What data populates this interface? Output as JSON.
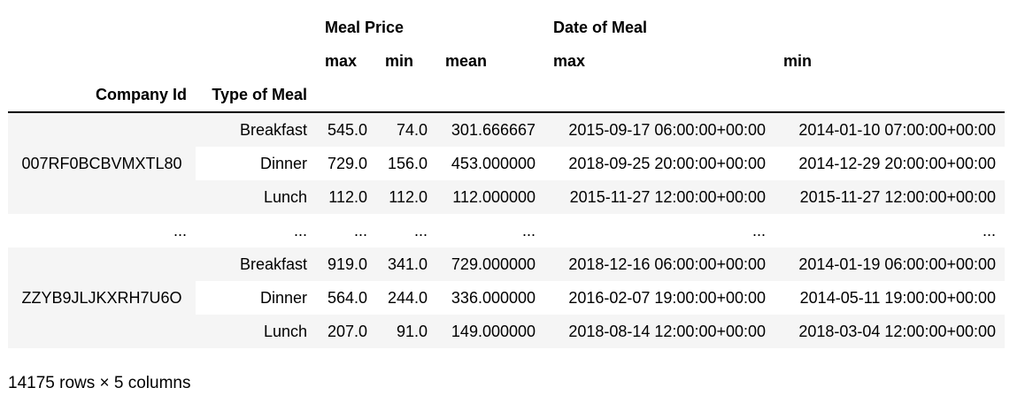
{
  "header": {
    "groups": {
      "meal_price": "Meal Price",
      "date_of_meal": "Date of Meal"
    },
    "sub": {
      "price_max": "max",
      "price_min": "min",
      "price_mean": "mean",
      "date_max": "max",
      "date_min": "min"
    },
    "index": {
      "company_id": "Company Id",
      "type_of_meal": "Type of Meal"
    }
  },
  "companies": [
    {
      "id": "007RF0BCBVMXTL80",
      "rows": [
        {
          "type": "Breakfast",
          "price_max": "545.0",
          "price_min": "74.0",
          "price_mean": "301.666667",
          "date_max": "2015-09-17 06:00:00+00:00",
          "date_min": "2014-01-10 07:00:00+00:00"
        },
        {
          "type": "Dinner",
          "price_max": "729.0",
          "price_min": "156.0",
          "price_mean": "453.000000",
          "date_max": "2018-09-25 20:00:00+00:00",
          "date_min": "2014-12-29 20:00:00+00:00"
        },
        {
          "type": "Lunch",
          "price_max": "112.0",
          "price_min": "112.0",
          "price_mean": "112.000000",
          "date_max": "2015-11-27 12:00:00+00:00",
          "date_min": "2015-11-27 12:00:00+00:00"
        }
      ]
    },
    {
      "id": "ZZYB9JLJKXRH7U6O",
      "rows": [
        {
          "type": "Breakfast",
          "price_max": "919.0",
          "price_min": "341.0",
          "price_mean": "729.000000",
          "date_max": "2018-12-16 06:00:00+00:00",
          "date_min": "2014-01-19 06:00:00+00:00"
        },
        {
          "type": "Dinner",
          "price_max": "564.0",
          "price_min": "244.0",
          "price_mean": "336.000000",
          "date_max": "2016-02-07 19:00:00+00:00",
          "date_min": "2014-05-11 19:00:00+00:00"
        },
        {
          "type": "Lunch",
          "price_max": "207.0",
          "price_min": "91.0",
          "price_mean": "149.000000",
          "date_max": "2018-08-14 12:00:00+00:00",
          "date_min": "2018-03-04 12:00:00+00:00"
        }
      ]
    }
  ],
  "ellipsis": {
    "company": "...",
    "type": "...",
    "price_max": "...",
    "price_min": "...",
    "price_mean": "...",
    "date_max": "...",
    "date_min": "..."
  },
  "summary": "14175 rows × 5 columns"
}
